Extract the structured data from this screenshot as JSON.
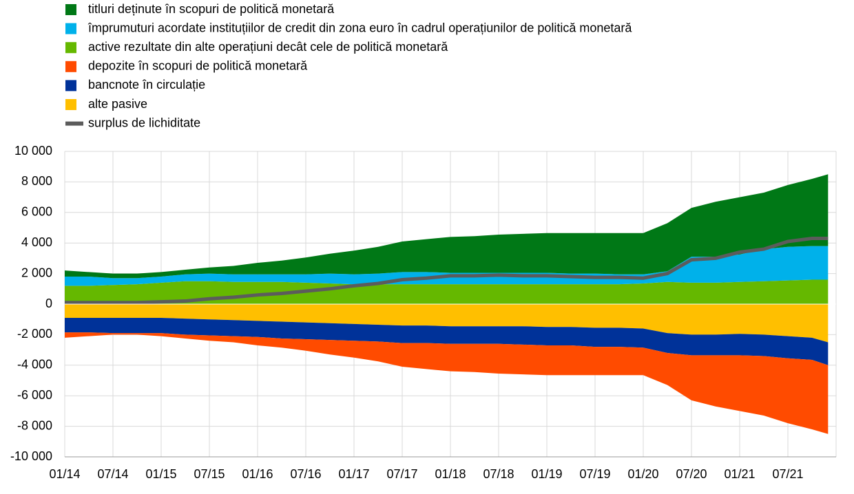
{
  "chart_data": {
    "type": "stacked-area",
    "x": [
      "2014-01",
      "2014-04",
      "2014-07",
      "2014-10",
      "2015-01",
      "2015-04",
      "2015-07",
      "2015-10",
      "2016-01",
      "2016-04",
      "2016-07",
      "2016-10",
      "2017-01",
      "2017-04",
      "2017-07",
      "2017-10",
      "2018-01",
      "2018-04",
      "2018-07",
      "2018-10",
      "2019-01",
      "2019-04",
      "2019-07",
      "2019-10",
      "2020-01",
      "2020-04",
      "2020-07",
      "2020-10",
      "2021-01",
      "2021-04",
      "2021-07",
      "2021-10",
      "2021-12"
    ],
    "series": [
      {
        "name": "titluri deținute în scopuri de politică monetară",
        "color": "#007816",
        "stack": "pos",
        "values": [
          400,
          300,
          300,
          300,
          300,
          300,
          400,
          550,
          750,
          900,
          1100,
          1300,
          1550,
          1750,
          2000,
          2150,
          2350,
          2400,
          2500,
          2550,
          2600,
          2650,
          2650,
          2700,
          2700,
          3150,
          3200,
          3600,
          3750,
          3700,
          4050,
          4400,
          4700
        ]
      },
      {
        "name": "împrumuturi acordate instituțiilor de credit din zona euro în cadrul operațiunilor de politică monetară",
        "color": "#00b1ea",
        "stack": "pos",
        "values": [
          600,
          600,
          450,
          400,
          400,
          450,
          500,
          500,
          500,
          500,
          550,
          650,
          650,
          700,
          800,
          800,
          750,
          750,
          750,
          750,
          750,
          700,
          700,
          650,
          600,
          700,
          1700,
          1700,
          1800,
          2100,
          2200,
          2200,
          2200
        ]
      },
      {
        "name": "active rezultate din alte operațiuni decât cele de politică monetară",
        "color": "#65b800",
        "stack": "pos",
        "values": [
          1200,
          1200,
          1250,
          1300,
          1400,
          1500,
          1500,
          1450,
          1450,
          1450,
          1400,
          1350,
          1300,
          1300,
          1300,
          1300,
          1300,
          1300,
          1300,
          1300,
          1300,
          1300,
          1300,
          1300,
          1350,
          1450,
          1400,
          1400,
          1450,
          1500,
          1550,
          1600,
          1600
        ]
      },
      {
        "name": "depozite în scopuri de politică monetară",
        "color": "#ff4b00",
        "stack": "neg",
        "values": [
          -350,
          -250,
          -100,
          -100,
          -200,
          -250,
          -350,
          -400,
          -550,
          -600,
          -750,
          -950,
          -1100,
          -1300,
          -1550,
          -1700,
          -1800,
          -1850,
          -1950,
          -1950,
          -1950,
          -1950,
          -1850,
          -1850,
          -1800,
          -2100,
          -2950,
          -3350,
          -3650,
          -3900,
          -4250,
          -4550,
          -4500
        ]
      },
      {
        "name": "bancnote în circulație",
        "color": "#003299",
        "stack": "neg",
        "values": [
          -950,
          -950,
          -1000,
          -1000,
          -1000,
          -1050,
          -1050,
          -1050,
          -1050,
          -1100,
          -1100,
          -1100,
          -1100,
          -1100,
          -1150,
          -1150,
          -1150,
          -1150,
          -1150,
          -1200,
          -1200,
          -1200,
          -1250,
          -1250,
          -1250,
          -1300,
          -1350,
          -1350,
          -1400,
          -1400,
          -1450,
          -1450,
          -1500
        ]
      },
      {
        "name": "alte pasive",
        "color": "#ffbf00",
        "stack": "neg",
        "values": [
          -900,
          -900,
          -900,
          -900,
          -900,
          -950,
          -1000,
          -1050,
          -1100,
          -1150,
          -1200,
          -1250,
          -1300,
          -1350,
          -1400,
          -1400,
          -1450,
          -1450,
          -1450,
          -1450,
          -1500,
          -1500,
          -1550,
          -1550,
          -1600,
          -1900,
          -2000,
          -2000,
          -1950,
          -2000,
          -2100,
          -2200,
          -2500
        ]
      },
      {
        "name": "surplus de lichiditate",
        "color": "#5c5c5c",
        "stack": "line",
        "values": [
          100,
          100,
          100,
          100,
          150,
          200,
          350,
          450,
          600,
          700,
          850,
          1000,
          1200,
          1350,
          1600,
          1700,
          1850,
          1850,
          1900,
          1850,
          1850,
          1800,
          1750,
          1750,
          1700,
          2000,
          2900,
          3000,
          3400,
          3600,
          4100,
          4300,
          4300
        ]
      }
    ],
    "xlim": [
      "2014-01",
      "2022-01"
    ],
    "xticks": [
      {
        "value": "2014-01",
        "label": "01/14"
      },
      {
        "value": "2014-07",
        "label": "07/14"
      },
      {
        "value": "2015-01",
        "label": "01/15"
      },
      {
        "value": "2015-07",
        "label": "07/15"
      },
      {
        "value": "2016-01",
        "label": "01/16"
      },
      {
        "value": "2016-07",
        "label": "07/16"
      },
      {
        "value": "2017-01",
        "label": "01/17"
      },
      {
        "value": "2017-07",
        "label": "07/17"
      },
      {
        "value": "2018-01",
        "label": "01/18"
      },
      {
        "value": "2018-07",
        "label": "07/18"
      },
      {
        "value": "2019-01",
        "label": "01/19"
      },
      {
        "value": "2019-07",
        "label": "07/19"
      },
      {
        "value": "2020-01",
        "label": "01/20"
      },
      {
        "value": "2020-07",
        "label": "07/20"
      },
      {
        "value": "2021-01",
        "label": "01/21"
      },
      {
        "value": "2021-07",
        "label": "07/21"
      }
    ],
    "ylim": [
      -10000,
      10000
    ],
    "yticks": [
      {
        "value": -10000,
        "label": "-10 000"
      },
      {
        "value": -8000,
        "label": "-8 000"
      },
      {
        "value": -6000,
        "label": "-6 000"
      },
      {
        "value": -4000,
        "label": "-4 000"
      },
      {
        "value": -2000,
        "label": "-2 000"
      },
      0,
      {
        "value": 2000,
        "label": "2 000"
      },
      {
        "value": 4000,
        "label": "4 000"
      },
      {
        "value": 6000,
        "label": "6 000"
      },
      {
        "value": 8000,
        "label": "8 000"
      },
      {
        "value": 10000,
        "label": "10 000"
      }
    ],
    "grid": true
  }
}
